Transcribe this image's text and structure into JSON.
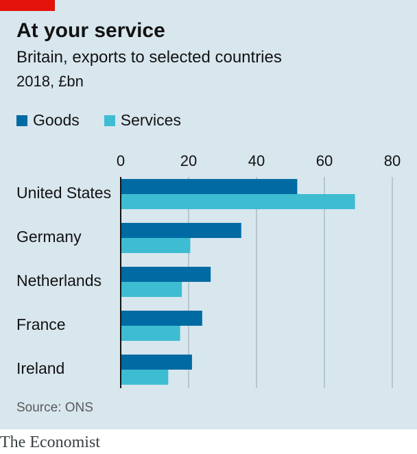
{
  "header": {
    "title": "At your service",
    "subtitle": "Britain, exports to selected countries",
    "unit": "2018, £bn"
  },
  "colors": {
    "goods": "#006ba2",
    "services": "#3ebcd2",
    "accent_red": "#e3120b",
    "background": "#d8e6ee"
  },
  "chart_data": {
    "type": "bar",
    "orientation": "horizontal",
    "categories": [
      "United States",
      "Germany",
      "Netherlands",
      "France",
      "Ireland"
    ],
    "series": [
      {
        "name": "Goods",
        "values": [
          52,
          35.5,
          26.5,
          24,
          21
        ]
      },
      {
        "name": "Services",
        "values": [
          69,
          20.5,
          18,
          17.5,
          14
        ]
      }
    ],
    "xlim": [
      0,
      80
    ],
    "xticks": [
      "0",
      "20",
      "40",
      "60",
      "80"
    ],
    "grid": true,
    "legend_position": "top-left"
  },
  "footer": {
    "source": "Source: ONS",
    "brand": "The Economist"
  }
}
